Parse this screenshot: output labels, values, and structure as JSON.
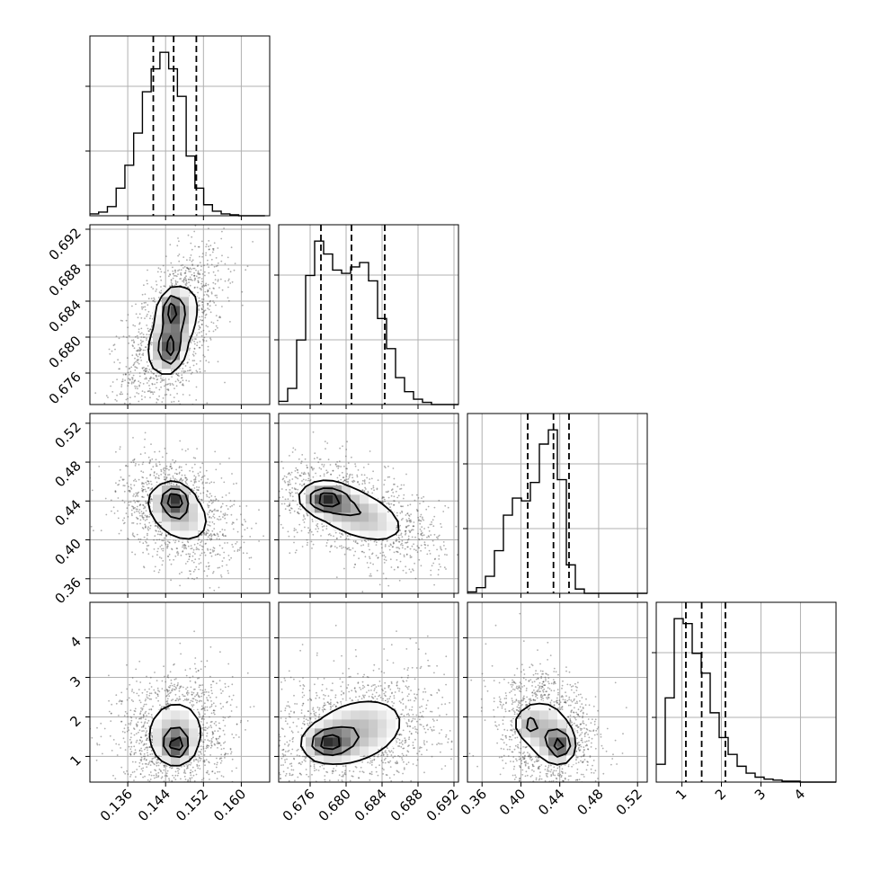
{
  "chart_data": {
    "type": "corner",
    "grid": true,
    "parameters": [
      {
        "range": [
          0.128,
          0.166
        ],
        "ticks": [
          0.136,
          0.144,
          0.152,
          0.16
        ],
        "tick_labels": [
          "0.136",
          "0.144",
          "0.152",
          "0.160"
        ],
        "quantiles": [
          0.1414,
          0.1457,
          0.1505
        ],
        "histogram": {
          "bin_start": 0.128,
          "bin_width": 0.00185,
          "counts": [
            2,
            4,
            10,
            30,
            55,
            90,
            135,
            160,
            178,
            160,
            130,
            65,
            30,
            12,
            5,
            2,
            1,
            0,
            0,
            0
          ]
        }
      },
      {
        "range": [
          0.6725,
          0.6925
        ],
        "ticks": [
          0.676,
          0.68,
          0.684,
          0.688,
          0.692
        ],
        "tick_labels": [
          "0.676",
          "0.680",
          "0.684",
          "0.688",
          "0.692"
        ],
        "quantiles": [
          0.6772,
          0.6806,
          0.6843
        ],
        "histogram": {
          "bin_start": 0.6725,
          "bin_width": 0.001,
          "counts": [
            3,
            15,
            60,
            120,
            152,
            140,
            125,
            122,
            128,
            132,
            115,
            80,
            52,
            25,
            12,
            5,
            2,
            0,
            0,
            0
          ]
        }
      },
      {
        "range": [
          0.345,
          0.53
        ],
        "ticks": [
          0.36,
          0.4,
          0.44,
          0.48,
          0.52
        ],
        "tick_labels": [
          "0.36",
          "0.40",
          "0.44",
          "0.48",
          "0.52"
        ],
        "quantiles": [
          0.407,
          0.4335,
          0.4495
        ],
        "histogram": {
          "bin_start": 0.345,
          "bin_width": 0.00925,
          "counts": [
            1,
            4,
            12,
            30,
            55,
            67,
            65,
            78,
            105,
            115,
            80,
            20,
            3,
            0,
            0,
            0,
            0,
            0,
            0,
            0
          ]
        }
      },
      {
        "range": [
          0.35,
          4.9
        ],
        "ticks": [
          1,
          2,
          3,
          4
        ],
        "tick_labels": [
          "1",
          "2",
          "3",
          "4"
        ],
        "quantiles": [
          1.1,
          1.5,
          2.1
        ],
        "histogram": {
          "bin_start": 0.35,
          "bin_width": 0.2275,
          "counts": [
            18,
            85,
            165,
            160,
            130,
            110,
            70,
            45,
            28,
            16,
            9,
            5,
            3,
            2,
            1,
            1,
            0,
            0,
            0,
            0
          ]
        }
      }
    ],
    "joint": [
      {
        "x": 0,
        "y": 1,
        "mean": [
          0.1456,
          0.6808
        ],
        "sd": [
          0.0042,
          0.0037
        ],
        "rho": 0.55,
        "blobs": [
          {
            "dx": -0.0003,
            "dy": 0.0023,
            "w": 1.0
          },
          {
            "dx": -0.0006,
            "dy": -0.0022,
            "w": 0.9
          }
        ],
        "n_points": 1500
      },
      {
        "x": 0,
        "y": 2,
        "mean": [
          0.1465,
          0.4285
        ],
        "sd": [
          0.0048,
          0.022
        ],
        "rho": -0.35,
        "blobs": [
          {
            "dx": -0.0005,
            "dy": 0.0135,
            "w": 1.0
          }
        ],
        "n_points": 1400
      },
      {
        "x": 1,
        "y": 2,
        "mean": [
          0.6808,
          0.4285
        ],
        "sd": [
          0.004,
          0.022
        ],
        "rho": -0.55,
        "blobs": [
          {
            "dx": -0.003,
            "dy": 0.0135,
            "w": 1.0
          }
        ],
        "n_points": 1400
      },
      {
        "x": 0,
        "y": 3,
        "mean": [
          0.146,
          1.58
        ],
        "sd": [
          0.0045,
          0.62
        ],
        "rho": 0.05,
        "blobs": [
          {
            "dx": 0.0003,
            "dy": -0.3,
            "w": 1.0
          }
        ],
        "n_points": 1500
      },
      {
        "x": 1,
        "y": 3,
        "mean": [
          0.681,
          1.62
        ],
        "sd": [
          0.004,
          0.62
        ],
        "rho": 0.3,
        "blobs": [
          {
            "dx": -0.003,
            "dy": -0.28,
            "w": 1.0
          }
        ],
        "n_points": 1500
      },
      {
        "x": 2,
        "y": 3,
        "mean": [
          0.428,
          1.6
        ],
        "sd": [
          0.02,
          0.6
        ],
        "rho": -0.25,
        "blobs": [
          {
            "dx": 0.013,
            "dy": -0.32,
            "w": 1.0
          },
          {
            "dx": -0.022,
            "dy": 0.22,
            "w": 0.55
          }
        ],
        "n_points": 1500
      }
    ],
    "contour_levels": [
      0.25,
      0.55,
      0.85
    ],
    "colors": {
      "line": "#000000",
      "grid": "#b0b0b0",
      "points": "#4d4d4d",
      "density": "#000000"
    }
  }
}
